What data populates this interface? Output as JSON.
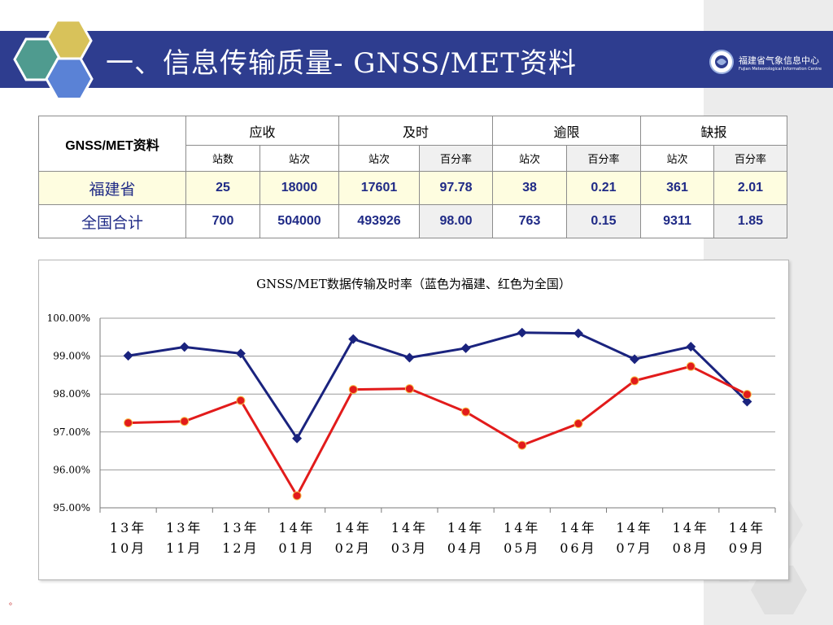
{
  "title": "一、信息传输质量- GNSS/MET资料",
  "logo": {
    "cn": "福建省气象信息中心",
    "en": "Fujian Meteorological Information Centre"
  },
  "table": {
    "corner": "GNSS/MET资料",
    "groups": [
      "应收",
      "及时",
      "逾限",
      "缺报"
    ],
    "subheaders": [
      "站数",
      "站次",
      "站次",
      "百分率",
      "站次",
      "百分率",
      "站次",
      "百分率"
    ],
    "rows": [
      {
        "label": "福建省",
        "values": [
          "25",
          "18000",
          "17601",
          "97.78",
          "38",
          "0.21",
          "361",
          "2.01"
        ]
      },
      {
        "label": "全国合计",
        "values": [
          "700",
          "504000",
          "493926",
          "98.00",
          "763",
          "0.15",
          "9311",
          "1.85"
        ]
      }
    ]
  },
  "chart_data": {
    "type": "line",
    "title": "GNSS/MET数据传输及时率（蓝色为福建、红色为全国）",
    "categories": [
      [
        "13年",
        "10月"
      ],
      [
        "13年",
        "11月"
      ],
      [
        "13年",
        "12月"
      ],
      [
        "14年",
        "01月"
      ],
      [
        "14年",
        "02月"
      ],
      [
        "14年",
        "03月"
      ],
      [
        "14年",
        "04月"
      ],
      [
        "14年",
        "05月"
      ],
      [
        "14年",
        "06月"
      ],
      [
        "14年",
        "07月"
      ],
      [
        "14年",
        "08月"
      ],
      [
        "14年",
        "09月"
      ]
    ],
    "yticks": [
      "95.00%",
      "96.00%",
      "97.00%",
      "98.00%",
      "99.00%",
      "100.00%"
    ],
    "ylim": [
      95,
      100
    ],
    "grid": true,
    "series": [
      {
        "color": "#1a237e",
        "values": [
          99.01,
          99.24,
          99.07,
          96.83,
          99.45,
          98.96,
          99.21,
          99.62,
          99.6,
          98.92,
          99.25,
          97.8
        ]
      },
      {
        "color": "#e21b1b",
        "values": [
          97.24,
          97.28,
          97.83,
          95.32,
          98.12,
          98.14,
          97.53,
          96.65,
          97.22,
          98.35,
          98.73,
          97.99
        ]
      }
    ]
  },
  "footnote": "。"
}
